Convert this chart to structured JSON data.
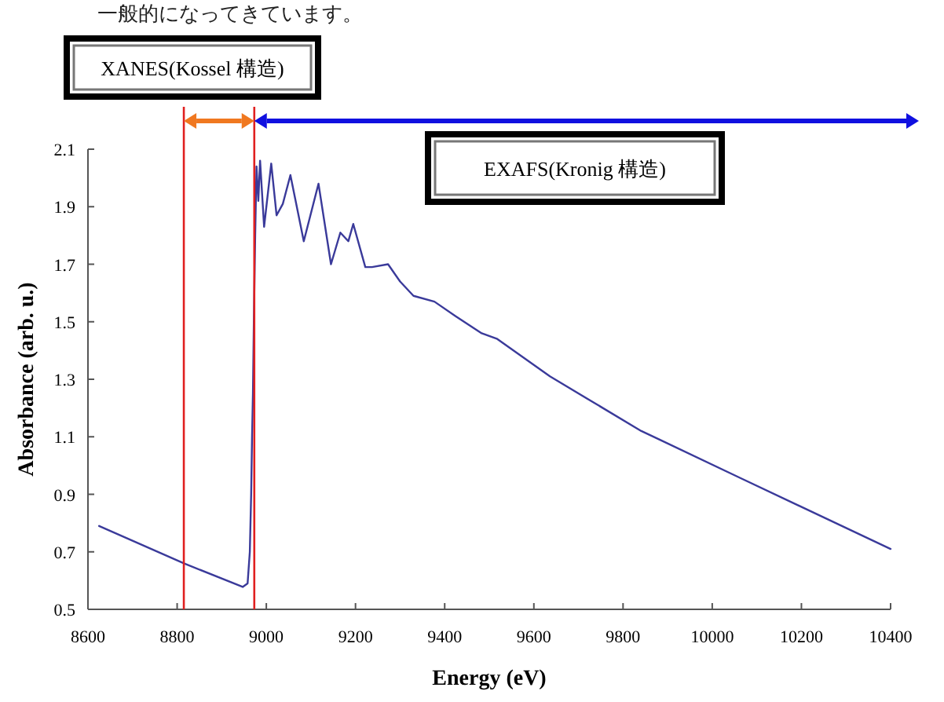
{
  "chart_data": {
    "type": "line",
    "xlabel": "Energy (eV)",
    "ylabel": "Absorbance (arb. u.)",
    "x": [
      8625,
      8815,
      8947,
      8958,
      8963,
      8966,
      8968,
      8970,
      8972,
      8975,
      8978,
      8982,
      8986,
      8995,
      9011,
      9023,
      9037,
      9054,
      9084,
      9117,
      9145,
      9166,
      9184,
      9195,
      9222,
      9237,
      9273,
      9300,
      9330,
      9377,
      9424,
      9483,
      9518,
      9636,
      9841,
      9882,
      10064,
      10400
    ],
    "series": [
      {
        "color": "#3a3a9a",
        "values": [
          0.79,
          0.66,
          0.578,
          0.59,
          0.7,
          0.9,
          1.1,
          1.25,
          1.5,
          1.8,
          2.04,
          1.92,
          2.06,
          1.83,
          2.05,
          1.87,
          1.91,
          2.01,
          1.78,
          1.98,
          1.7,
          1.81,
          1.78,
          1.84,
          1.69,
          1.69,
          1.7,
          1.64,
          1.59,
          1.57,
          1.52,
          1.46,
          1.44,
          1.31,
          1.12,
          1.09,
          0.956,
          0.71
        ]
      }
    ],
    "xlim": [
      8600,
      10400
    ],
    "xticks": [
      8600,
      8800,
      9000,
      9200,
      9400,
      9600,
      9800,
      10000,
      10200,
      10400
    ],
    "ylim": [
      0.5,
      2.1
    ],
    "yticks": [
      0.5,
      0.7,
      0.9,
      1.1,
      1.3,
      1.5,
      1.7,
      1.9,
      2.1
    ],
    "ref_lines": [
      {
        "axis": "x",
        "value": 8815,
        "color": "#e02020"
      },
      {
        "axis": "x",
        "value": 8973,
        "color": "#e02020"
      }
    ],
    "annotations": [
      "一般的になってきています。",
      "XANES(Kossel 構造)",
      "EXAFS(Kronig 構造)"
    ]
  }
}
